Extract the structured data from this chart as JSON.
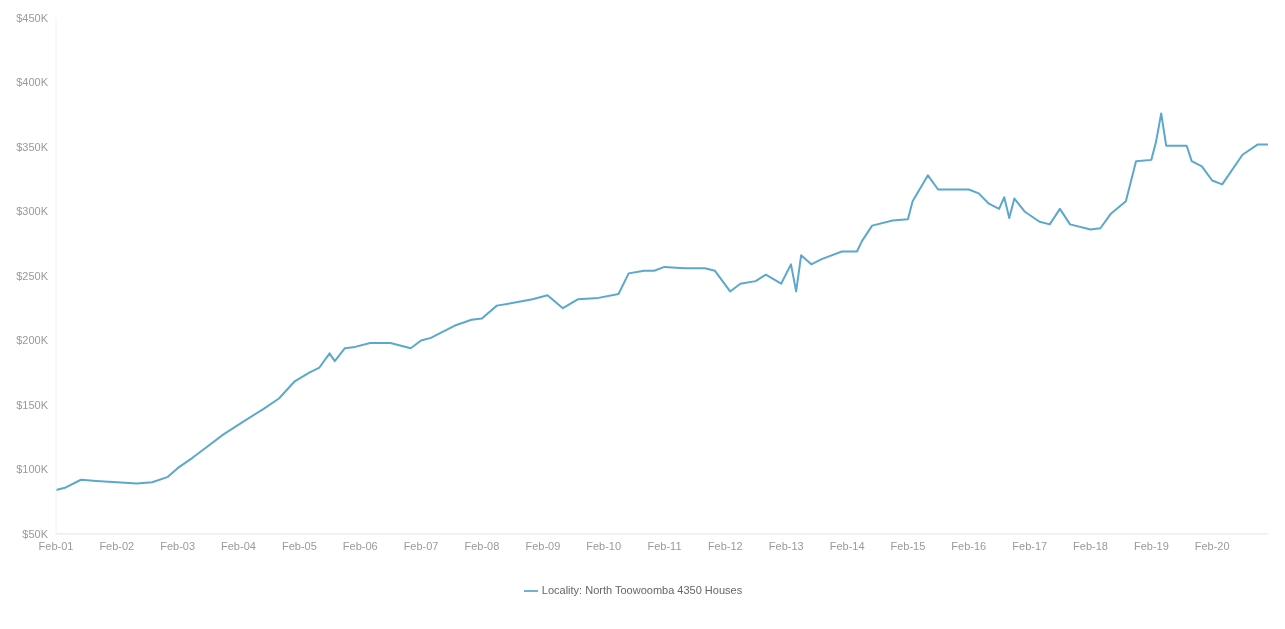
{
  "chart_data": {
    "type": "line",
    "x": [
      "2001-02",
      "2001-04",
      "2001-07",
      "2001-10",
      "2002-02",
      "2002-06",
      "2002-09",
      "2002-12",
      "2003-02",
      "2003-05",
      "2003-08",
      "2003-11",
      "2004-03",
      "2004-07",
      "2004-10",
      "2005-01",
      "2005-04",
      "2005-06",
      "2005-08",
      "2005-09",
      "2005-11",
      "2006-01",
      "2006-04",
      "2006-08",
      "2006-12",
      "2007-02",
      "2007-04",
      "2007-06",
      "2007-09",
      "2007-12",
      "2008-02",
      "2008-05",
      "2008-08",
      "2008-12",
      "2009-03",
      "2009-06",
      "2009-09",
      "2010-01",
      "2010-05",
      "2010-07",
      "2010-10",
      "2010-12",
      "2011-02",
      "2011-06",
      "2011-10",
      "2011-12",
      "2012-03",
      "2012-05",
      "2012-08",
      "2012-10",
      "2013-01",
      "2013-03",
      "2013-04",
      "2013-05",
      "2013-07",
      "2013-09",
      "2014-01",
      "2014-04",
      "2014-05",
      "2014-07",
      "2014-11",
      "2015-02",
      "2015-03",
      "2015-06",
      "2015-08",
      "2016-02",
      "2016-04",
      "2016-06",
      "2016-08",
      "2016-09",
      "2016-10",
      "2016-11",
      "2017-01",
      "2017-04",
      "2017-06",
      "2017-08",
      "2017-10",
      "2018-02",
      "2018-04",
      "2018-06",
      "2018-09",
      "2018-11",
      "2019-02",
      "2019-03",
      "2019-04",
      "2019-05",
      "2019-09",
      "2019-10",
      "2019-12",
      "2020-02",
      "2020-04",
      "2020-08",
      "2020-11",
      "2021-01"
    ],
    "series": [
      {
        "name": "Locality: North Toowoomba 4350 Houses",
        "color": "#5ba8cc",
        "values": [
          84,
          86,
          92,
          91,
          90,
          89,
          90,
          94,
          101,
          109,
          118,
          127,
          137,
          147,
          155,
          168,
          175,
          179,
          190,
          184,
          194,
          195,
          198,
          198,
          194,
          200,
          202,
          206,
          212,
          216,
          217,
          227,
          229,
          232,
          235,
          225,
          232,
          233,
          236,
          252,
          254,
          254,
          257,
          256,
          256,
          254,
          238,
          244,
          246,
          251,
          244,
          259,
          238,
          266,
          259,
          263,
          269,
          269,
          277,
          289,
          293,
          294,
          308,
          328,
          317,
          317,
          314,
          306,
          302,
          311,
          295,
          310,
          300,
          292,
          290,
          302,
          290,
          286,
          287,
          298,
          308,
          339,
          340,
          354,
          376,
          351,
          351,
          339,
          335,
          324,
          321,
          344,
          352,
          352
        ]
      }
    ],
    "xlim": [
      "2001-02",
      "2021-01"
    ],
    "xticks": [
      {
        "value": "2001-02",
        "label": "Feb-01"
      },
      {
        "value": "2002-02",
        "label": "Feb-02"
      },
      {
        "value": "2003-02",
        "label": "Feb-03"
      },
      {
        "value": "2004-02",
        "label": "Feb-04"
      },
      {
        "value": "2005-02",
        "label": "Feb-05"
      },
      {
        "value": "2006-02",
        "label": "Feb-06"
      },
      {
        "value": "2007-02",
        "label": "Feb-07"
      },
      {
        "value": "2008-02",
        "label": "Feb-08"
      },
      {
        "value": "2009-02",
        "label": "Feb-09"
      },
      {
        "value": "2010-02",
        "label": "Feb-10"
      },
      {
        "value": "2011-02",
        "label": "Feb-11"
      },
      {
        "value": "2012-02",
        "label": "Feb-12"
      },
      {
        "value": "2013-02",
        "label": "Feb-13"
      },
      {
        "value": "2014-02",
        "label": "Feb-14"
      },
      {
        "value": "2015-02",
        "label": "Feb-15"
      },
      {
        "value": "2016-02",
        "label": "Feb-16"
      },
      {
        "value": "2017-02",
        "label": "Feb-17"
      },
      {
        "value": "2018-02",
        "label": "Feb-18"
      },
      {
        "value": "2019-02",
        "label": "Feb-19"
      },
      {
        "value": "2020-02",
        "label": "Feb-20"
      }
    ],
    "ylim": [
      50,
      450
    ],
    "yticks": [
      {
        "value": 50,
        "label": "$50K"
      },
      {
        "value": 100,
        "label": "$100K"
      },
      {
        "value": 150,
        "label": "$150K"
      },
      {
        "value": 200,
        "label": "$200K"
      },
      {
        "value": 250,
        "label": "$250K"
      },
      {
        "value": 300,
        "label": "$300K"
      },
      {
        "value": 350,
        "label": "$350K"
      },
      {
        "value": 400,
        "label": "$400K"
      },
      {
        "value": 450,
        "label": "$450K"
      }
    ],
    "legend": "bottom"
  }
}
